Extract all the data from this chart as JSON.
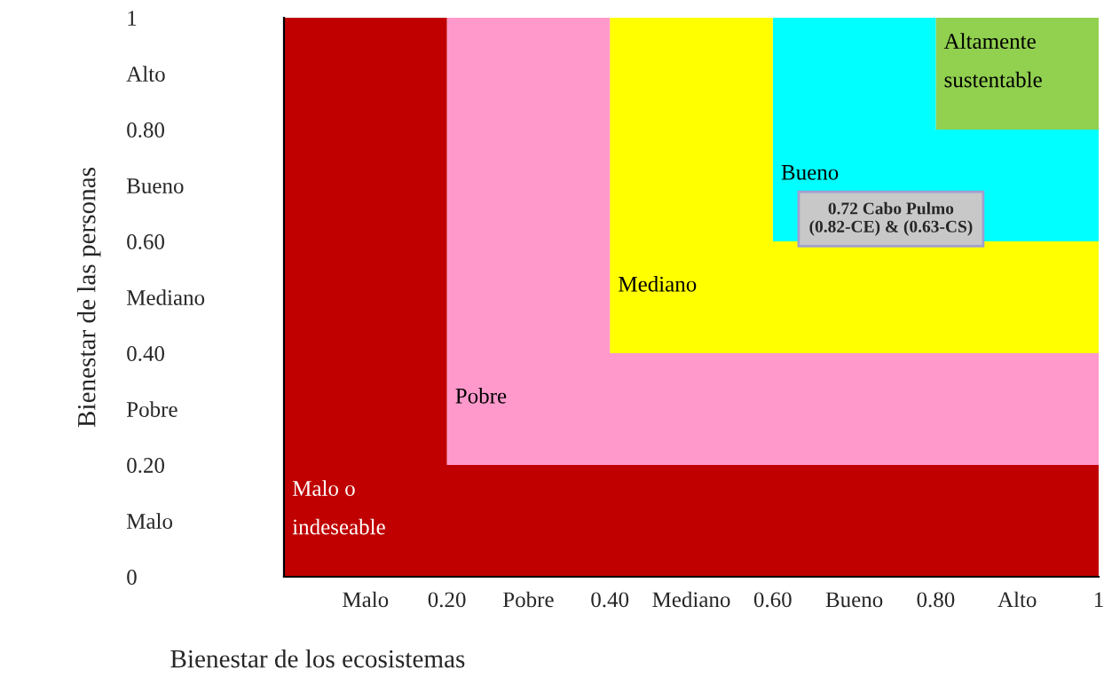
{
  "chart_data": {
    "type": "area",
    "xlabel": "Bienestar de los ecosistemas",
    "ylabel": "Bienestar de las personas",
    "xlim": [
      0,
      1
    ],
    "ylim": [
      0,
      1
    ],
    "xticks": [
      {
        "value": 0.1,
        "label": "Malo"
      },
      {
        "value": 0.2,
        "label": "0.20"
      },
      {
        "value": 0.3,
        "label": "Pobre"
      },
      {
        "value": 0.4,
        "label": "0.40"
      },
      {
        "value": 0.5,
        "label": "Mediano"
      },
      {
        "value": 0.6,
        "label": "0.60"
      },
      {
        "value": 0.7,
        "label": "Bueno"
      },
      {
        "value": 0.8,
        "label": "0.80"
      },
      {
        "value": 0.9,
        "label": "Alto"
      },
      {
        "value": 1,
        "label": "1"
      }
    ],
    "yticks": [
      {
        "value": 0,
        "label": "0"
      },
      {
        "value": 0.1,
        "label": "Malo"
      },
      {
        "value": 0.2,
        "label": "0.20"
      },
      {
        "value": 0.3,
        "label": "Pobre"
      },
      {
        "value": 0.4,
        "label": "0.40"
      },
      {
        "value": 0.5,
        "label": "Mediano"
      },
      {
        "value": 0.6,
        "label": "0.60"
      },
      {
        "value": 0.7,
        "label": "Bueno"
      },
      {
        "value": 0.8,
        "label": "0.80"
      },
      {
        "value": 0.9,
        "label": "Alto"
      },
      {
        "value": 1,
        "label": "1"
      }
    ],
    "series": [
      {
        "name": "Malo o\nindeseable",
        "color": "#c00000",
        "x": [
          0,
          0.2,
          0.2,
          1
        ],
        "values": [
          1,
          1,
          0.2,
          0.2
        ]
      },
      {
        "name": "Pobre",
        "color": "#ff99cc",
        "x": [
          0.2,
          0.4,
          0.4,
          1
        ],
        "values": [
          1,
          1,
          0.4,
          0.4
        ]
      },
      {
        "name": "Mediano",
        "color": "#ffff00",
        "x": [
          0.4,
          0.6,
          0.6,
          1
        ],
        "values": [
          1,
          1,
          0.6,
          0.6
        ]
      },
      {
        "name": "Bueno",
        "color": "#00ffff",
        "x": [
          0.6,
          0.8,
          0.8,
          1
        ],
        "values": [
          1,
          1,
          0.8,
          0.8
        ]
      },
      {
        "name": "Altamente\nsustentable",
        "color": "#92d050",
        "x": [
          0.8,
          1
        ],
        "values": [
          1,
          1
        ]
      }
    ],
    "annotations": [
      "0.72 Cabo Pulmo\n(0.82-CE) & (0.63-CS)"
    ],
    "grid": false,
    "legend": false
  }
}
